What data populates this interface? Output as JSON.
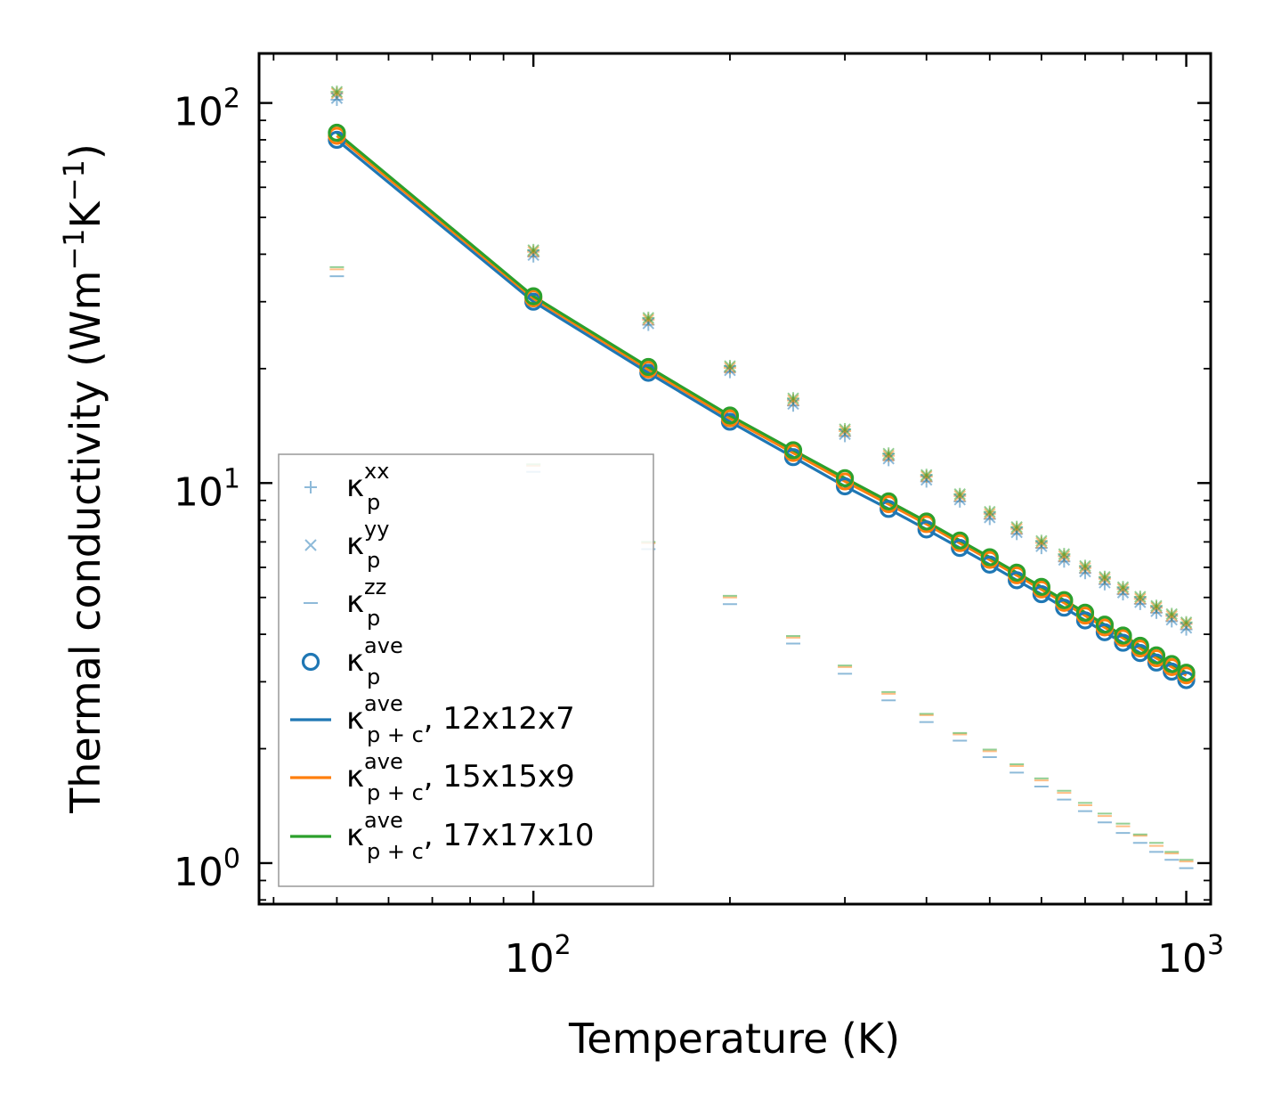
{
  "chart_data": {
    "type": "scatter",
    "x_scale": "log",
    "y_scale": "log",
    "xlabel": "Temperature (K)",
    "ylabel": {
      "prefix": "Thermal conductivity (Wm",
      "sup1": "−1",
      "mid": "K",
      "sup2": "−1",
      "suffix": ")"
    },
    "xlim": [
      38,
      1090
    ],
    "ylim": [
      0.78,
      135
    ],
    "x_ticks": [
      {
        "value": 100,
        "base": "10",
        "exp": "2"
      },
      {
        "value": 1000,
        "base": "10",
        "exp": "3"
      }
    ],
    "y_ticks": [
      {
        "value": 1,
        "base": "10",
        "exp": "0"
      },
      {
        "value": 10,
        "base": "10",
        "exp": "1"
      },
      {
        "value": 100,
        "base": "10",
        "exp": "2"
      }
    ],
    "temperature": [
      50,
      100,
      150,
      200,
      250,
      300,
      350,
      400,
      450,
      500,
      550,
      600,
      650,
      700,
      750,
      800,
      850,
      900,
      950,
      1000
    ],
    "series": [
      {
        "name": "κp xx",
        "kind": "marker",
        "marker": "plus",
        "color": "#1f77b4",
        "opacity": 0.5,
        "meshes": [
          [
            102,
            39.5,
            26.1,
            19.6,
            16.0,
            13.3,
            11.5,
            10.1,
            8.95,
            8.05,
            7.35,
            6.75,
            6.22,
            5.8,
            5.42,
            5.1,
            4.81,
            4.56,
            4.33,
            4.12
          ],
          [
            106,
            40.6,
            26.9,
            20.1,
            16.5,
            13.7,
            11.8,
            10.4,
            9.25,
            8.3,
            7.58,
            6.96,
            6.42,
            5.98,
            5.6,
            5.26,
            4.96,
            4.7,
            4.47,
            4.26
          ],
          [
            107,
            41.0,
            27.2,
            20.3,
            16.7,
            13.85,
            11.95,
            10.5,
            9.35,
            8.4,
            7.66,
            7.04,
            6.5,
            6.05,
            5.66,
            5.32,
            5.02,
            4.75,
            4.52,
            4.3
          ]
        ]
      },
      {
        "name": "κp yy",
        "kind": "marker",
        "marker": "x",
        "color": "#1f77b4",
        "opacity": 0.5,
        "meshes": [
          [
            103,
            39.8,
            26.3,
            19.8,
            16.15,
            13.45,
            11.6,
            10.2,
            9.05,
            8.12,
            7.42,
            6.82,
            6.28,
            5.85,
            5.47,
            5.15,
            4.86,
            4.6,
            4.37,
            4.16
          ],
          [
            106,
            40.6,
            26.9,
            20.1,
            16.5,
            13.7,
            11.8,
            10.4,
            9.25,
            8.3,
            7.58,
            6.96,
            6.42,
            5.98,
            5.6,
            5.26,
            4.96,
            4.7,
            4.47,
            4.26
          ],
          [
            107,
            41.0,
            27.2,
            20.3,
            16.7,
            13.85,
            11.95,
            10.5,
            9.35,
            8.4,
            7.66,
            7.04,
            6.5,
            6.05,
            5.66,
            5.32,
            5.02,
            4.75,
            4.52,
            4.3
          ]
        ]
      },
      {
        "name": "κp zz",
        "kind": "marker",
        "marker": "dash",
        "color": "#1f77b4",
        "opacity": 0.5,
        "meshes": [
          [
            35.0,
            10.7,
            6.7,
            4.8,
            3.78,
            3.15,
            2.68,
            2.35,
            2.1,
            1.9,
            1.73,
            1.59,
            1.47,
            1.37,
            1.28,
            1.2,
            1.13,
            1.07,
            1.02,
            0.97
          ],
          [
            36.5,
            11.1,
            6.95,
            5.0,
            3.92,
            3.28,
            2.79,
            2.45,
            2.18,
            1.97,
            1.8,
            1.65,
            1.53,
            1.42,
            1.33,
            1.25,
            1.18,
            1.11,
            1.06,
            1.01
          ],
          [
            37.0,
            11.2,
            7.0,
            5.05,
            3.96,
            3.31,
            2.82,
            2.47,
            2.2,
            1.99,
            1.82,
            1.67,
            1.55,
            1.44,
            1.35,
            1.27,
            1.19,
            1.13,
            1.07,
            1.02
          ]
        ]
      },
      {
        "name": "κp ave",
        "kind": "marker",
        "marker": "circle",
        "colors": [
          "#1f77b4",
          "#ff7f0e",
          "#2ca02c"
        ],
        "meshes": [
          [
            80,
            30.0,
            19.5,
            14.5,
            11.7,
            9.8,
            8.55,
            7.55,
            6.75,
            6.1,
            5.55,
            5.1,
            4.7,
            4.35,
            4.05,
            3.8,
            3.57,
            3.37,
            3.19,
            3.03
          ],
          [
            82,
            30.6,
            19.9,
            14.8,
            12.0,
            10.1,
            8.8,
            7.8,
            6.95,
            6.28,
            5.72,
            5.25,
            4.84,
            4.48,
            4.17,
            3.91,
            3.67,
            3.46,
            3.28,
            3.12
          ],
          [
            83.5,
            31.0,
            20.2,
            15.05,
            12.2,
            10.3,
            8.95,
            7.92,
            7.06,
            6.38,
            5.81,
            5.33,
            4.92,
            4.56,
            4.24,
            3.97,
            3.73,
            3.52,
            3.34,
            3.17
          ]
        ]
      },
      {
        "name": "κp+c ave, 12x12x7",
        "kind": "line",
        "color": "#1f77b4",
        "values": [
          80,
          30.0,
          19.5,
          14.5,
          11.7,
          9.8,
          8.55,
          7.55,
          6.75,
          6.1,
          5.55,
          5.1,
          4.7,
          4.35,
          4.05,
          3.8,
          3.57,
          3.37,
          3.19,
          3.03
        ]
      },
      {
        "name": "κp+c ave, 15x15x9",
        "kind": "line",
        "color": "#ff7f0e",
        "values": [
          82,
          30.6,
          19.9,
          14.8,
          12.0,
          10.1,
          8.8,
          7.8,
          6.95,
          6.28,
          5.72,
          5.25,
          4.84,
          4.48,
          4.17,
          3.91,
          3.67,
          3.46,
          3.28,
          3.12
        ]
      },
      {
        "name": "κp+c ave, 17x17x10",
        "kind": "line",
        "color": "#2ca02c",
        "values": [
          83.5,
          31.0,
          20.2,
          15.05,
          12.2,
          10.3,
          8.95,
          7.92,
          7.06,
          6.38,
          5.81,
          5.33,
          4.92,
          4.56,
          4.24,
          3.97,
          3.73,
          3.52,
          3.34,
          3.17
        ]
      }
    ],
    "mesh_colors": [
      "#1f77b4",
      "#ff7f0e",
      "#2ca02c"
    ],
    "legend": {
      "placement": "lower-left",
      "entries": [
        {
          "marker": "plus",
          "color": "#1f77b4",
          "base": "κ",
          "sup": "xx",
          "sub": "p",
          "suffix": ""
        },
        {
          "marker": "x",
          "color": "#1f77b4",
          "base": "κ",
          "sup": "yy",
          "sub": "p",
          "suffix": ""
        },
        {
          "marker": "dash",
          "color": "#1f77b4",
          "base": "κ",
          "sup": "zz",
          "sub": "p",
          "suffix": ""
        },
        {
          "marker": "circle",
          "color": "#1f77b4",
          "base": "κ",
          "sup": "ave",
          "sub": "p",
          "suffix": ""
        },
        {
          "marker": "line",
          "color": "#1f77b4",
          "base": "κ",
          "sup": "ave",
          "sub": "p + c",
          "suffix": ", 12x12x7"
        },
        {
          "marker": "line",
          "color": "#ff7f0e",
          "base": "κ",
          "sup": "ave",
          "sub": "p + c",
          "suffix": ", 15x15x9"
        },
        {
          "marker": "line",
          "color": "#2ca02c",
          "base": "κ",
          "sup": "ave",
          "sub": "p + c",
          "suffix": ", 17x17x10"
        }
      ]
    }
  }
}
